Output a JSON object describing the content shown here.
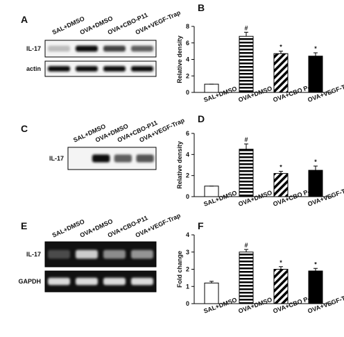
{
  "blots": [
    {
      "label": "A",
      "lanes": [
        "SAL+DMSO",
        "OVA+DMSO",
        "OVA+CBO-P11",
        "OVA+VEGF-Trap"
      ],
      "rows": [
        "IL-17",
        "actin"
      ]
    },
    {
      "label": "C",
      "lanes": [
        "SAL+DMSO",
        "OVA+DMSO",
        "OVA+CBO-P11",
        "OVA+VEGF-Trap"
      ],
      "rows": [
        "IL-17"
      ]
    },
    {
      "label": "E",
      "lanes": [
        "SAL+DMSO",
        "OVA+DMSO",
        "OVA+CBO-P11",
        "OVA+VEGF-Trap"
      ],
      "rows": [
        "IL-17",
        "GAPDH"
      ]
    }
  ],
  "chart_data": [
    {
      "type": "bar",
      "label": "B",
      "ylabel": "Relative density",
      "categories": [
        "SAL+DMSO",
        "OVA+DMSO",
        "OVA+CBO P-11",
        "OVA+VEGF-Trap"
      ],
      "values": [
        1,
        6.8,
        4.7,
        4.4
      ],
      "errors": [
        0,
        0.5,
        0.3,
        0.4
      ],
      "markers": [
        null,
        "#",
        "*",
        "*"
      ],
      "patterns": [
        "none",
        "horizontal",
        "diagonal",
        "solid"
      ],
      "ylim": [
        0,
        8
      ],
      "yticks": [
        0,
        2,
        4,
        6,
        8
      ]
    },
    {
      "type": "bar",
      "label": "D",
      "ylabel": "Relative density",
      "categories": [
        "SAL+DMSO",
        "OVA+DMSO",
        "OVA+CBO P-11",
        "OVA+VEGF-Trap"
      ],
      "values": [
        1,
        4.5,
        2.2,
        2.5
      ],
      "errors": [
        0,
        0.5,
        0.2,
        0.4
      ],
      "markers": [
        null,
        "#",
        "*",
        "*"
      ],
      "patterns": [
        "none",
        "horizontal",
        "diagonal",
        "solid"
      ],
      "ylim": [
        0,
        6
      ],
      "yticks": [
        0,
        2,
        4,
        6
      ]
    },
    {
      "type": "bar",
      "label": "F",
      "ylabel": "Fold change",
      "categories": [
        "SAL+DMSO",
        "OVA+DMSO",
        "OVA+CBO P-11",
        "OVA+VEGF-Trap"
      ],
      "values": [
        1.2,
        3.0,
        2.0,
        1.9
      ],
      "errors": [
        0.1,
        0.15,
        0.15,
        0.15
      ],
      "markers": [
        null,
        "#",
        "*",
        "*"
      ],
      "patterns": [
        "none",
        "horizontal",
        "diagonal",
        "solid"
      ],
      "ylim": [
        0,
        4
      ],
      "yticks": [
        0,
        1,
        2,
        3,
        4
      ]
    }
  ]
}
